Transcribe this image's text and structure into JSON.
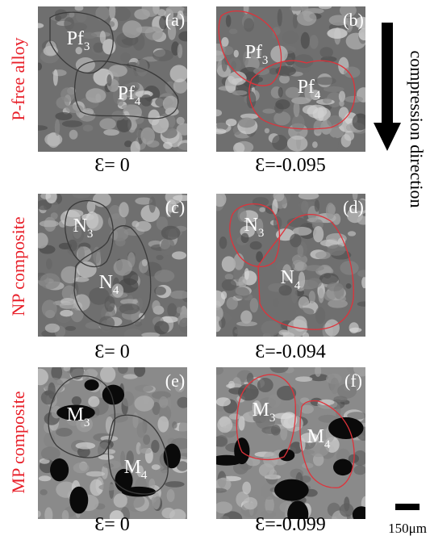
{
  "rows": [
    {
      "label": "P-free alloy",
      "panels": [
        {
          "letter": "(a)",
          "strain": "Ɛ= 0",
          "grains": [
            {
              "name": "Pf",
              "sub": "3"
            },
            {
              "name": "Pf",
              "sub": "4"
            }
          ]
        },
        {
          "letter": "(b)",
          "strain": "Ɛ=-0.095",
          "grains": [
            {
              "name": "Pf",
              "sub": "3"
            },
            {
              "name": "Pf",
              "sub": "4"
            }
          ]
        }
      ]
    },
    {
      "label": "NP composite",
      "panels": [
        {
          "letter": "(c)",
          "strain": "Ɛ= 0",
          "grains": [
            {
              "name": "N",
              "sub": "3"
            },
            {
              "name": "N",
              "sub": "4"
            }
          ]
        },
        {
          "letter": "(d)",
          "strain": "Ɛ=-0.094",
          "grains": [
            {
              "name": "N",
              "sub": "3"
            },
            {
              "name": "N",
              "sub": "4"
            }
          ]
        }
      ]
    },
    {
      "label": "MP composite",
      "panels": [
        {
          "letter": "(e)",
          "strain": "Ɛ= 0",
          "grains": [
            {
              "name": "M",
              "sub": "3"
            },
            {
              "name": "M",
              "sub": "4"
            }
          ]
        },
        {
          "letter": "(f)",
          "strain": "Ɛ=-0.099",
          "grains": [
            {
              "name": "M",
              "sub": "3"
            },
            {
              "name": "M",
              "sub": "4"
            }
          ]
        }
      ]
    }
  ],
  "arrow_label": "compression direction",
  "scale_bar": "150μm"
}
